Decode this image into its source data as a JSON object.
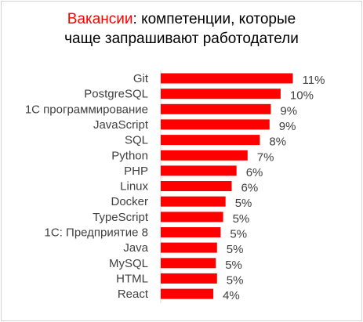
{
  "chart_data": {
    "type": "bar",
    "orientation": "horizontal",
    "title_prefix": "Вакансии",
    "title_rest_line1": ": компетенции, которые",
    "title_line2": "чаще запрашивают работодатели",
    "categories": [
      "Git",
      "PostgreSQL",
      "1С программирование",
      "JavaScript",
      "SQL",
      "Python",
      "PHP",
      "Linux",
      "Docker",
      "TypeScript",
      "1С: Предприятие 8",
      "Java",
      "MySQL",
      "HTML",
      "React"
    ],
    "values": [
      11,
      10,
      9,
      9,
      8,
      7,
      6,
      6,
      5,
      5,
      5,
      5,
      5,
      5,
      4
    ],
    "value_labels": [
      "11%",
      "10%",
      "9%",
      "9%",
      "8%",
      "7%",
      "6%",
      "6%",
      "5%",
      "5%",
      "5%",
      "5%",
      "5%",
      "5%",
      "4%"
    ],
    "plot_values": [
      10.8,
      9.8,
      9.0,
      8.9,
      8.1,
      7.1,
      6.2,
      5.8,
      5.3,
      5.1,
      4.9,
      4.6,
      4.5,
      4.6,
      4.3
    ],
    "grid": false,
    "legend": "none",
    "colors": {
      "bar": "#ff0000",
      "title_accent": "#ff0000",
      "axis": "#d9d9d9",
      "label": "#404040"
    }
  }
}
